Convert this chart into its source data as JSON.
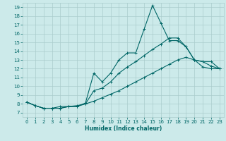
{
  "title": "",
  "xlabel": "Humidex (Indice chaleur)",
  "bg_color": "#cceaea",
  "grid_color": "#aacccc",
  "line_color": "#006666",
  "xlim": [
    -0.5,
    23.5
  ],
  "ylim": [
    6.5,
    19.5
  ],
  "xticks": [
    0,
    1,
    2,
    3,
    4,
    5,
    6,
    7,
    8,
    9,
    10,
    11,
    12,
    13,
    14,
    15,
    16,
    17,
    18,
    19,
    20,
    21,
    22,
    23
  ],
  "yticks": [
    7,
    8,
    9,
    10,
    11,
    12,
    13,
    14,
    15,
    16,
    17,
    18,
    19
  ],
  "line1_x": [
    0,
    1,
    2,
    3,
    4,
    5,
    6,
    7,
    8,
    9,
    10,
    11,
    12,
    13,
    14,
    15,
    16,
    17,
    18,
    19,
    20,
    21,
    22,
    23
  ],
  "line1_y": [
    8.2,
    7.8,
    7.5,
    7.5,
    7.5,
    7.7,
    7.7,
    8.1,
    11.5,
    10.5,
    11.5,
    13.0,
    13.8,
    13.8,
    16.5,
    19.2,
    17.2,
    15.2,
    15.2,
    14.5,
    13.0,
    12.8,
    12.8,
    12.0
  ],
  "line2_x": [
    0,
    1,
    2,
    3,
    4,
    5,
    6,
    7,
    8,
    9,
    10,
    11,
    12,
    13,
    14,
    15,
    16,
    17,
    18,
    19,
    20,
    21,
    22,
    23
  ],
  "line2_y": [
    8.2,
    7.8,
    7.5,
    7.5,
    7.5,
    7.7,
    7.7,
    8.0,
    9.5,
    9.8,
    10.5,
    11.5,
    12.2,
    12.8,
    13.5,
    14.2,
    14.8,
    15.5,
    15.5,
    14.5,
    13.0,
    12.2,
    12.0,
    12.0
  ],
  "line3_x": [
    0,
    1,
    2,
    3,
    4,
    5,
    6,
    7,
    8,
    9,
    10,
    11,
    12,
    13,
    14,
    15,
    16,
    17,
    18,
    19,
    20,
    21,
    22,
    23
  ],
  "line3_y": [
    8.2,
    7.8,
    7.5,
    7.5,
    7.7,
    7.7,
    7.8,
    8.0,
    8.3,
    8.7,
    9.1,
    9.5,
    10.0,
    10.5,
    11.0,
    11.5,
    12.0,
    12.5,
    13.0,
    13.3,
    13.0,
    12.8,
    12.3,
    12.0
  ]
}
